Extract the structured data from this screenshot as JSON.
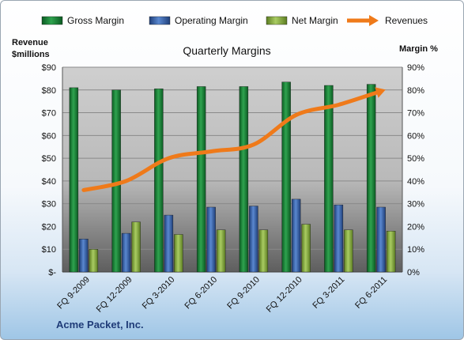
{
  "chart_data": {
    "type": "bar",
    "title": "Quarterly Margins",
    "categories": [
      "FQ 9-2009",
      "FQ 12-2009",
      "FQ 3-2010",
      "FQ 6-2010",
      "FQ 9-2010",
      "FQ 12-2010",
      "FQ 3-2011",
      "FQ 6-2011"
    ],
    "series": [
      {
        "name": "Gross Margin",
        "type": "bar",
        "axis": "right",
        "values": [
          81,
          80,
          80.5,
          81.5,
          81.5,
          83.5,
          82,
          82.5
        ],
        "color": "#1e8a3c"
      },
      {
        "name": "Operating Margin",
        "type": "bar",
        "axis": "right",
        "values": [
          14.5,
          17,
          25,
          28.5,
          29,
          32,
          29.5,
          28.5
        ],
        "color": "#3a6bb5"
      },
      {
        "name": "Net Margin",
        "type": "bar",
        "axis": "right",
        "values": [
          10,
          22,
          16.5,
          18.5,
          18.5,
          21,
          18.5,
          18
        ],
        "color": "#8fb84a"
      },
      {
        "name": "Revenues",
        "type": "line",
        "axis": "left",
        "values": [
          36,
          40,
          50,
          53,
          56,
          69,
          73.5,
          79.5
        ],
        "color": "#ef7a1a"
      }
    ],
    "y_left": {
      "label_line1": "Revenue",
      "label_line2": "$millions",
      "ylim": [
        0,
        90
      ],
      "ticks": [
        "$-",
        "$10",
        "$20",
        "$30",
        "$40",
        "$50",
        "$60",
        "$70",
        "$80",
        "$90"
      ]
    },
    "y_right": {
      "label": "Margin %",
      "ylim": [
        0,
        90
      ],
      "ticks": [
        "0%",
        "10%",
        "20%",
        "30%",
        "40%",
        "50%",
        "60%",
        "70%",
        "80%",
        "90%"
      ]
    },
    "grid": true,
    "legend_position": "top",
    "footer": "Acme Packet, Inc."
  }
}
